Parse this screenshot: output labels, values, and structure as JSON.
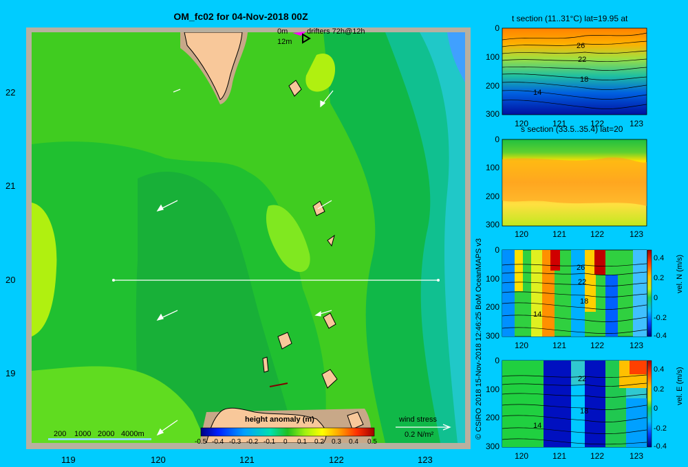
{
  "title": "OM_fc02 for 04-Nov-2018 00Z",
  "legend": {
    "row1_depth": "0m",
    "row1_label": "drifters 72h@12h",
    "row2_depth": "12m"
  },
  "map": {
    "lat_ticks": [
      "22",
      "21",
      "20",
      "19"
    ],
    "lon_ticks": [
      "119",
      "120",
      "121",
      "122",
      "123"
    ],
    "depth_scale": [
      "200",
      "1000",
      "2000",
      "4000m"
    ],
    "colorbar_title": "height anomaly (m)",
    "colorbar_ticks": [
      "-0.5",
      "-0.4",
      "-0.3",
      "-0.2",
      "-0.1",
      "0",
      "0.1",
      "0.2",
      "0.3",
      "0.4",
      "0.5"
    ],
    "wind_stress_label": "wind stress",
    "wind_stress_value": "0.2 N/m²",
    "section_line_lat": 20,
    "section_line_lon": [
      119.5,
      123.2
    ]
  },
  "panels": [
    {
      "title": "t section (11..31°C) lat=19.95 at",
      "y_ticks": [
        "0",
        "100",
        "200",
        "300"
      ],
      "x_ticks": [
        "120",
        "121",
        "122",
        "123"
      ],
      "contour_labels": [
        "26",
        "22",
        "18",
        "14"
      ]
    },
    {
      "title": "s section (33.5..35.4) lat=20",
      "y_ticks": [
        "0",
        "100",
        "200",
        "300"
      ],
      "x_ticks": [
        "120",
        "121",
        "122",
        "123"
      ]
    },
    {
      "title": "",
      "y_ticks": [
        "0",
        "100",
        "200",
        "300"
      ],
      "x_ticks": [
        "120",
        "121",
        "122",
        "123"
      ],
      "contour_labels": [
        "26",
        "22",
        "18",
        "14"
      ],
      "cbar_ticks": [
        "0.4",
        "0.2",
        "0",
        "-0.2",
        "-0.4"
      ],
      "cbar_label": "vel. N (m/s)"
    },
    {
      "title": "",
      "y_ticks": [
        "0",
        "100",
        "200",
        "300"
      ],
      "x_ticks": [
        "120",
        "121",
        "122",
        "123"
      ],
      "contour_labels": [
        "22",
        "18",
        "14"
      ],
      "cbar_ticks": [
        "0.4",
        "0.2",
        "0",
        "-0.2",
        "-0.4"
      ],
      "cbar_label": "vel. E (m/s)"
    }
  ],
  "credit": "© CSIRO 2018  15-Nov-2018 12:46:25 BoM OceanMAPS v3",
  "colors": {
    "background": "#00ccff",
    "land": "#f8c89a",
    "shelf": "#c8a888",
    "map_frame": "#b8b0a0"
  }
}
